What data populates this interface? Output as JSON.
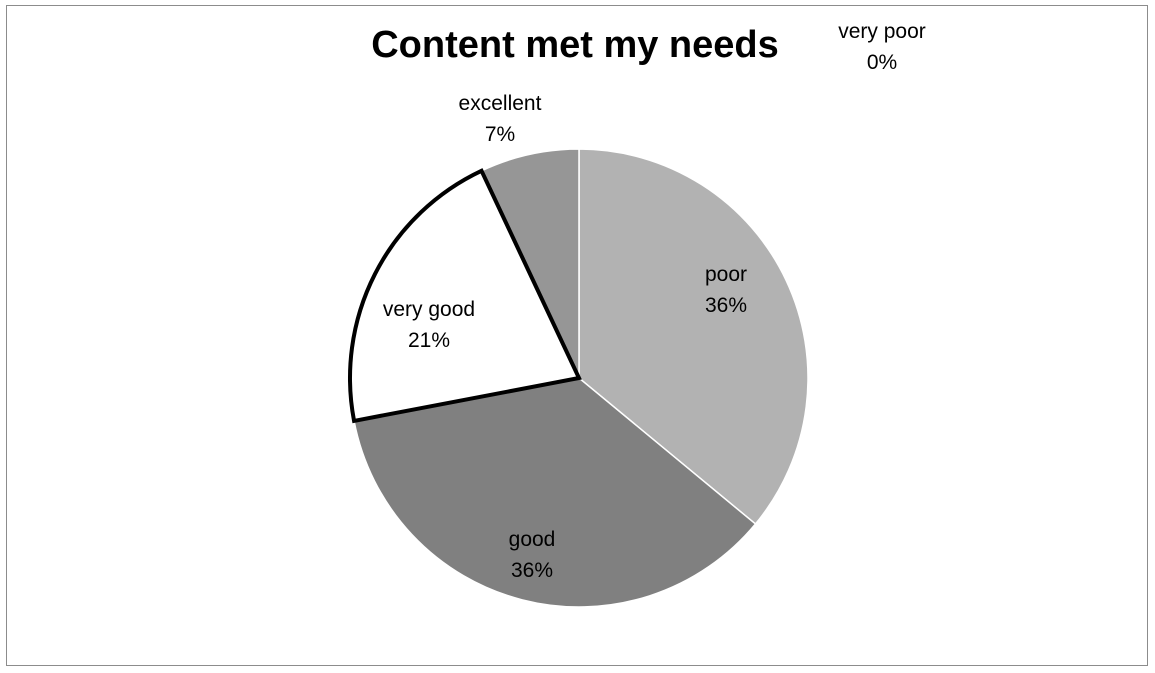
{
  "chart_data": {
    "type": "pie",
    "title": "Content met my needs",
    "slices": [
      {
        "label": "poor",
        "value": 36,
        "value_text": "36%",
        "color": "#b2b2b2",
        "highlight": false
      },
      {
        "label": "good",
        "value": 36,
        "value_text": "36%",
        "color": "#808080",
        "highlight": false
      },
      {
        "label": "very good",
        "value": 21,
        "value_text": "21%",
        "color": "#ffffff",
        "highlight": true
      },
      {
        "label": "excellent",
        "value": 7,
        "value_text": "7%",
        "color": "#969696",
        "highlight": false
      },
      {
        "label": "very poor",
        "value": 0,
        "value_text": "0%",
        "color": "#d9d9d9",
        "highlight": false
      }
    ],
    "start_angle_deg": 0,
    "direction": "clockwise",
    "legend": "none",
    "data_labels": "category and percentage"
  }
}
